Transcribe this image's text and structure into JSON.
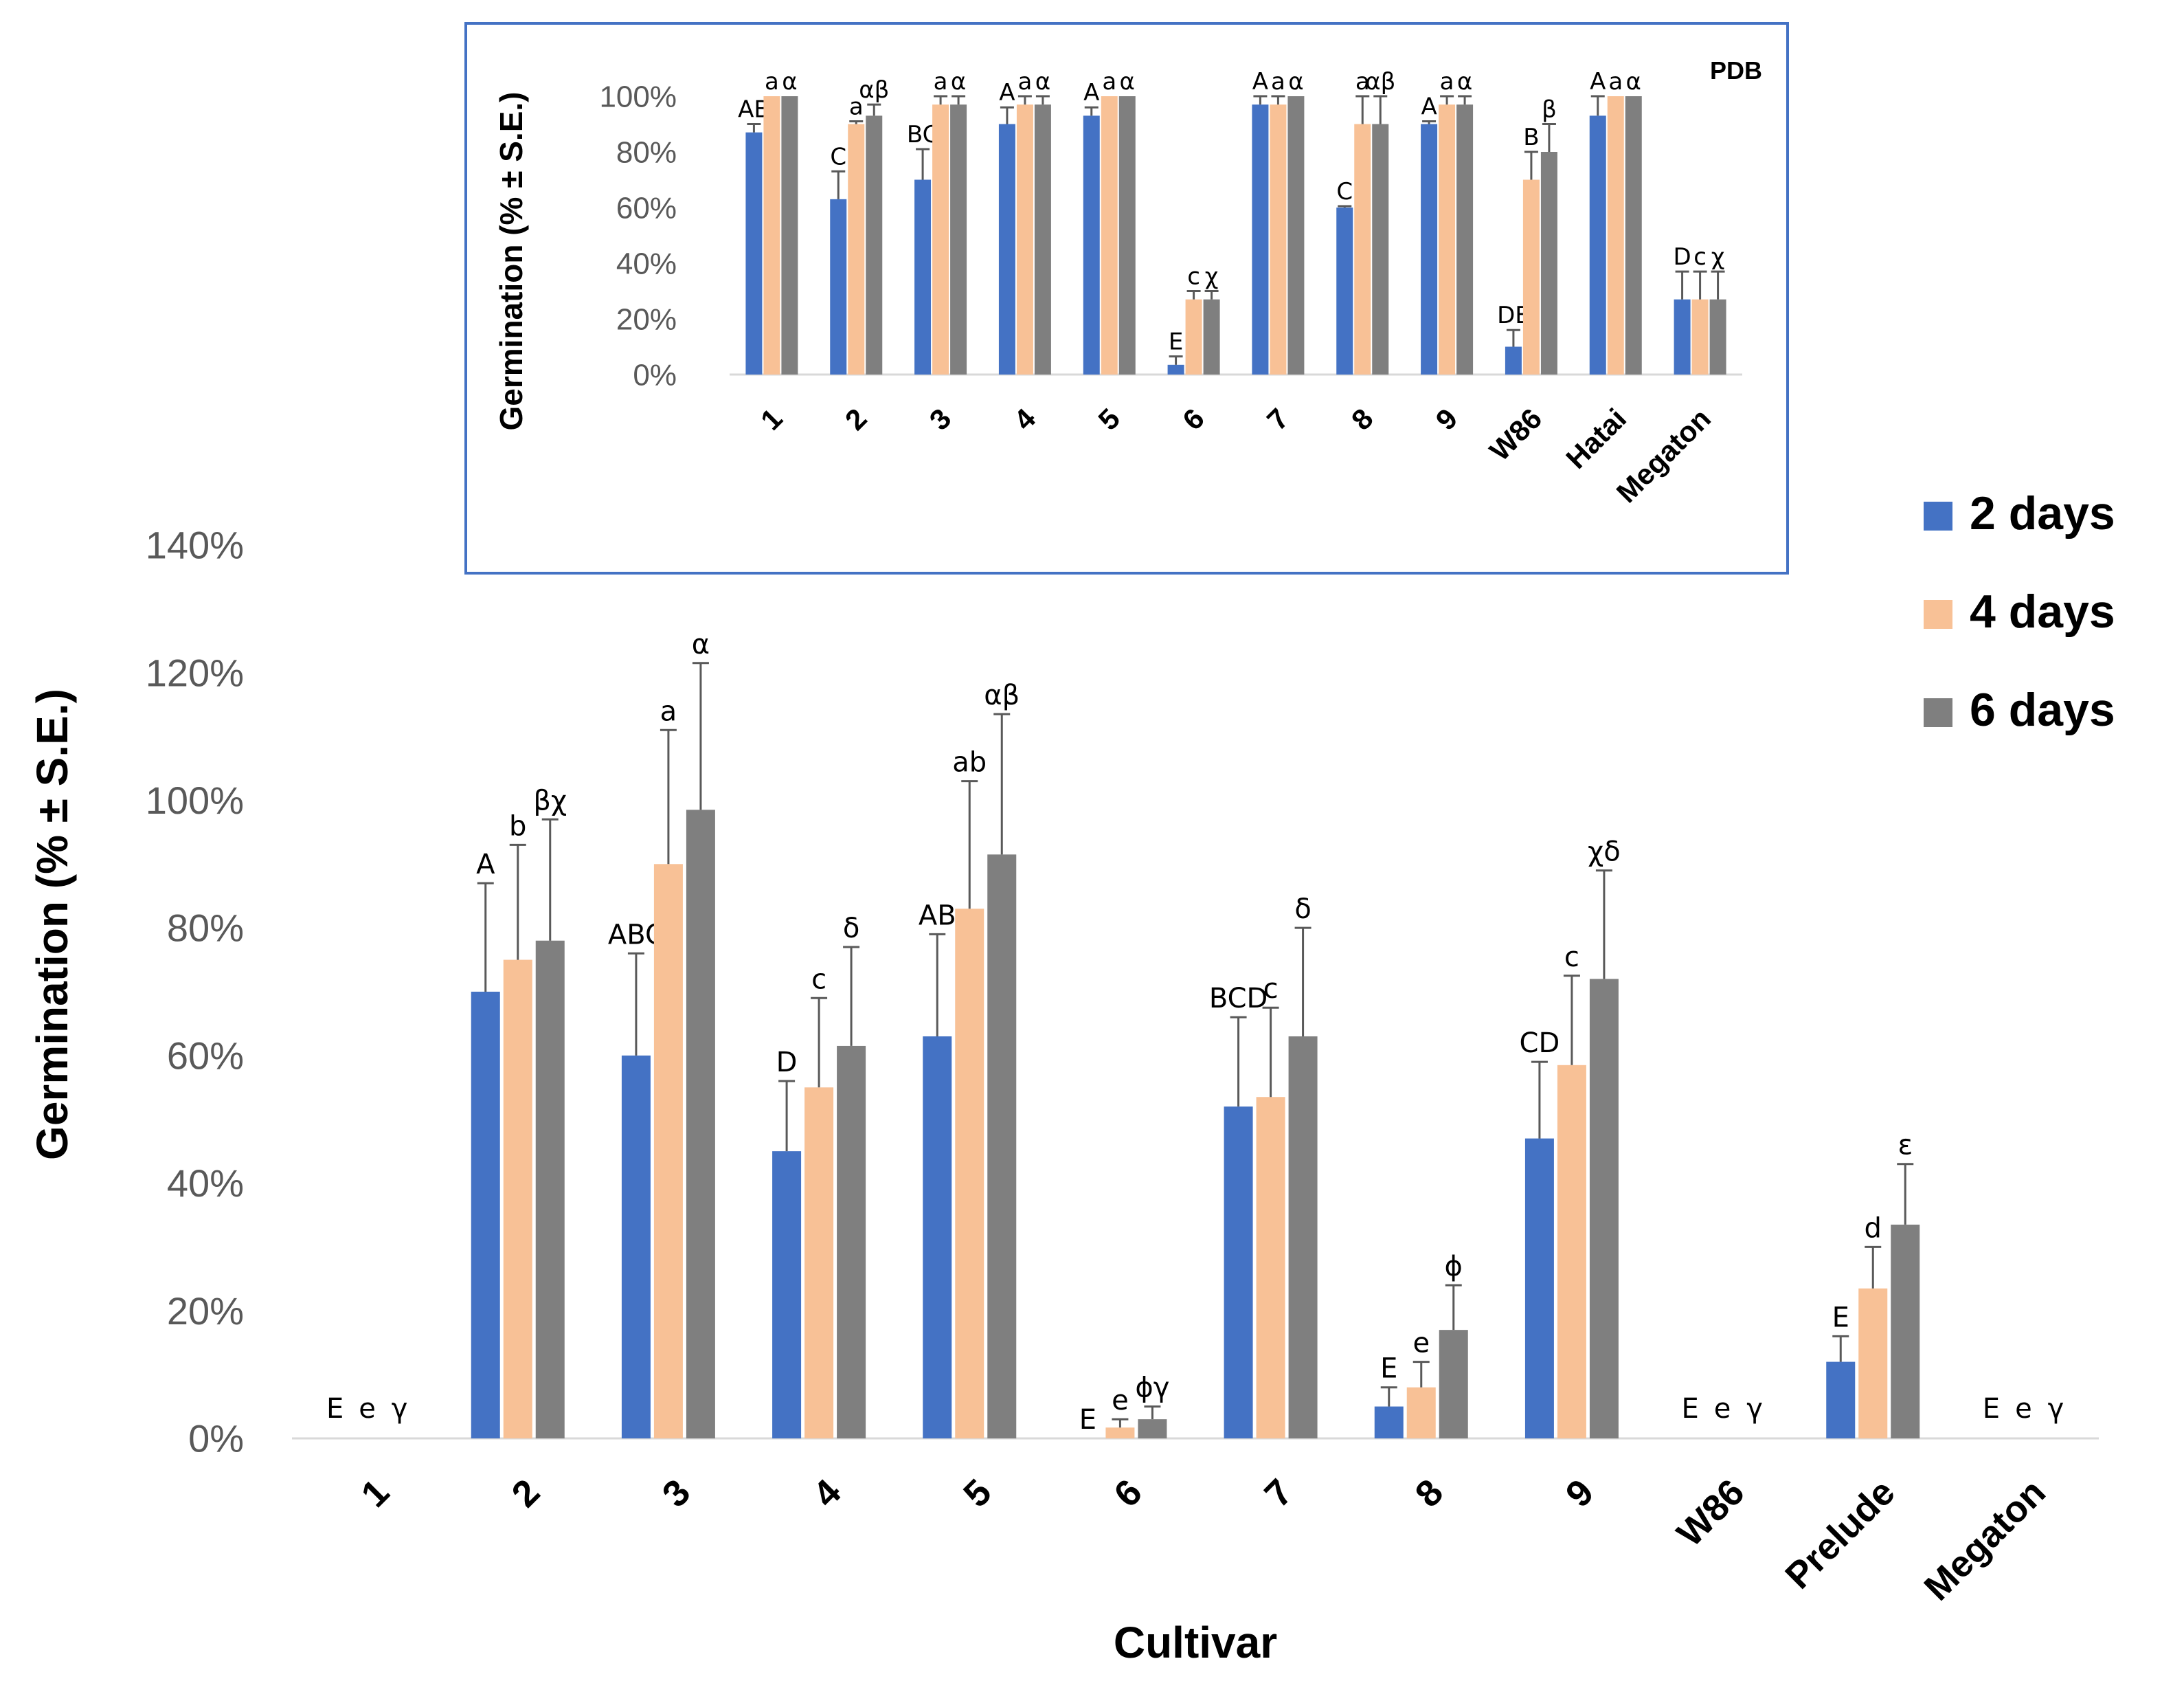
{
  "legend": {
    "entries": [
      {
        "label": "2 days",
        "color": "#4472C4"
      },
      {
        "label": "4 days",
        "color": "#F8C196"
      },
      {
        "label": "6 days",
        "color": "#7F7F7F"
      }
    ]
  },
  "chart_data": [
    {
      "type": "bar",
      "title": "",
      "xlabel": "Cultivar",
      "ylabel": "Germination (% ± S.E.)",
      "ylim": [
        0,
        140
      ],
      "yticks": [
        "0%",
        "20%",
        "40%",
        "60%",
        "80%",
        "100%",
        "120%",
        "140%"
      ],
      "categories": [
        "1",
        "2",
        "3",
        "4",
        "5",
        "6",
        "7",
        "8",
        "9",
        "W86",
        "Prelude",
        "Megaton"
      ],
      "series": [
        {
          "name": "2 days",
          "values": [
            0,
            70,
            60,
            45,
            63,
            0,
            52,
            5,
            47,
            0,
            12,
            0
          ],
          "errors": [
            0,
            17,
            16,
            11,
            16,
            0,
            14,
            3,
            12,
            0,
            4,
            0
          ],
          "letters": [
            "E",
            "A",
            "ABC",
            "D",
            "AB",
            "E",
            "BCD",
            "E",
            "CD",
            "E",
            "E",
            "E"
          ]
        },
        {
          "name": "4 days",
          "values": [
            0,
            75,
            90,
            55,
            83,
            1.7,
            53.5,
            8,
            58.5,
            0,
            23.5,
            0
          ],
          "errors": [
            0,
            18,
            21,
            14,
            20,
            1.3,
            14,
            4,
            14,
            0,
            6.5,
            0
          ],
          "letters": [
            "e",
            "b",
            "a",
            "c",
            "ab",
            "e",
            "c",
            "e",
            "c",
            "e",
            "d",
            "e"
          ]
        },
        {
          "name": "6 days",
          "values": [
            0,
            78,
            98.5,
            61.5,
            91.5,
            3,
            63,
            17,
            72,
            0,
            33.5,
            0
          ],
          "errors": [
            0,
            19,
            23,
            15.5,
            22,
            2,
            17,
            7,
            17,
            0,
            9.5,
            0
          ],
          "letters": [
            "γ",
            "βχ",
            "α",
            "δ",
            "αβ",
            "ϕγ",
            "δ",
            "ϕ",
            "χδ",
            "γ",
            "ε",
            "γ"
          ]
        }
      ]
    },
    {
      "type": "bar",
      "title": "PDB",
      "xlabel": "",
      "ylabel": "Germination (% ± S.E.)",
      "ylim": [
        0,
        100
      ],
      "yticks": [
        "0%",
        "20%",
        "40%",
        "60%",
        "80%",
        "100%"
      ],
      "categories": [
        "1",
        "2",
        "3",
        "4",
        "5",
        "6",
        "7",
        "8",
        "9",
        "W86",
        "Hatai",
        "Megaton"
      ],
      "series": [
        {
          "name": "2 days",
          "values": [
            87,
            63,
            70,
            90,
            93,
            3.5,
            97,
            60,
            90,
            10,
            93,
            27
          ],
          "errors": [
            3,
            10,
            11,
            6,
            3,
            3,
            3,
            0.5,
            1,
            6,
            7,
            10
          ],
          "letters": [
            "AB",
            "C",
            "BC",
            "A",
            "A",
            "E",
            "A",
            "C",
            "A",
            "DE",
            "A",
            "D"
          ]
        },
        {
          "name": "4 days",
          "values": [
            100,
            90,
            97,
            97,
            100,
            27,
            97,
            90,
            97,
            70,
            100,
            27
          ],
          "errors": [
            0,
            1,
            3,
            3,
            0,
            3,
            3,
            10,
            3,
            10,
            0,
            10
          ],
          "letters": [
            "a",
            "a",
            "a",
            "a",
            "a",
            "c",
            "a",
            "a",
            "a",
            "B",
            "a",
            "c"
          ]
        },
        {
          "name": "6 days",
          "values": [
            100,
            93,
            97,
            97,
            100,
            27,
            100,
            90,
            97,
            80,
            100,
            27
          ],
          "errors": [
            0,
            4,
            3,
            3,
            0,
            3,
            0,
            10,
            3,
            10,
            0,
            10
          ],
          "letters": [
            "α",
            "αβ",
            "α",
            "α",
            "α",
            "χ",
            "α",
            "αβ",
            "α",
            "β",
            "α",
            "χ"
          ]
        }
      ]
    }
  ]
}
